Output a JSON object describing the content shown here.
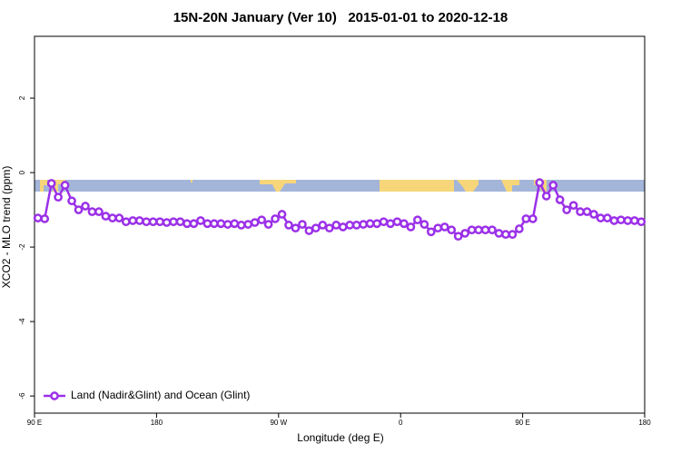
{
  "chart_data": {
    "type": "line",
    "title": "15N-20N January (Ver 10)   2015-01-01 to 2020-12-18",
    "xlabel": "Longitude (deg E)",
    "ylabel": "XCO2 - MLO trend (ppm)",
    "xlim": [
      90,
      540
    ],
    "ylim": [
      -6.46,
      3.66
    ],
    "xticks": [
      {
        "value": 90,
        "label": "90 E"
      },
      180,
      {
        "value": 270,
        "label": "90 W"
      },
      {
        "value": 360,
        "label": "0"
      },
      {
        "value": 450,
        "label": "90 E"
      },
      {
        "value": 540,
        "label": "180"
      }
    ],
    "yticks": [
      -6,
      -4,
      -2,
      0,
      2
    ],
    "legend": "bottom-left",
    "x": [
      92.5,
      97.5,
      102.5,
      107.5,
      112.5,
      117.5,
      122.5,
      127.5,
      132.5,
      137.5,
      142.5,
      147.5,
      152.5,
      157.5,
      162.5,
      167.5,
      172.5,
      177.5,
      182.5,
      187.5,
      192.5,
      197.5,
      202.5,
      207.5,
      212.5,
      217.5,
      222.5,
      227.5,
      232.5,
      237.5,
      242.5,
      247.5,
      252.5,
      257.5,
      262.5,
      267.5,
      272.5,
      277.5,
      282.5,
      287.5,
      292.5,
      297.5,
      302.5,
      307.5,
      312.5,
      317.5,
      322.5,
      327.5,
      332.5,
      337.5,
      342.5,
      347.5,
      352.5,
      357.5,
      362.5,
      367.5,
      372.5,
      377.5,
      382.5,
      387.5,
      392.5,
      397.5,
      402.5,
      407.5,
      412.5,
      417.5,
      422.5,
      427.5,
      432.5,
      437.5,
      442.5,
      447.5,
      452.5,
      457.5,
      462.5,
      467.5,
      472.5,
      477.5,
      482.5,
      487.5,
      492.5,
      497.5,
      502.5,
      507.5,
      512.5,
      517.5,
      522.5,
      527.5,
      532.5,
      537.5
    ],
    "series": [
      {
        "name": "Land (Nadir&Glint) and Ocean (Glint)",
        "color": "#9b30e8",
        "values": [
          -1.22,
          -1.24,
          -0.29,
          -0.66,
          -0.34,
          -0.76,
          -1.0,
          -0.9,
          -1.05,
          -1.05,
          -1.17,
          -1.22,
          -1.22,
          -1.32,
          -1.29,
          -1.29,
          -1.32,
          -1.32,
          -1.32,
          -1.34,
          -1.32,
          -1.32,
          -1.37,
          -1.37,
          -1.29,
          -1.37,
          -1.37,
          -1.37,
          -1.39,
          -1.37,
          -1.41,
          -1.39,
          -1.34,
          -1.27,
          -1.39,
          -1.24,
          -1.12,
          -1.41,
          -1.49,
          -1.39,
          -1.56,
          -1.49,
          -1.41,
          -1.49,
          -1.41,
          -1.46,
          -1.41,
          -1.41,
          -1.39,
          -1.37,
          -1.37,
          -1.32,
          -1.37,
          -1.32,
          -1.37,
          -1.46,
          -1.27,
          -1.39,
          -1.59,
          -1.49,
          -1.46,
          -1.54,
          -1.71,
          -1.63,
          -1.54,
          -1.54,
          -1.54,
          -1.54,
          -1.63,
          -1.66,
          -1.66,
          -1.51,
          -1.24,
          -1.24,
          -0.27,
          -0.63,
          -0.34,
          -0.73,
          -1.0,
          -0.88,
          -1.05,
          -1.05,
          -1.12,
          -1.22,
          -1.22,
          -1.29,
          -1.27,
          -1.29,
          -1.29,
          -1.32
        ]
      }
    ]
  }
}
